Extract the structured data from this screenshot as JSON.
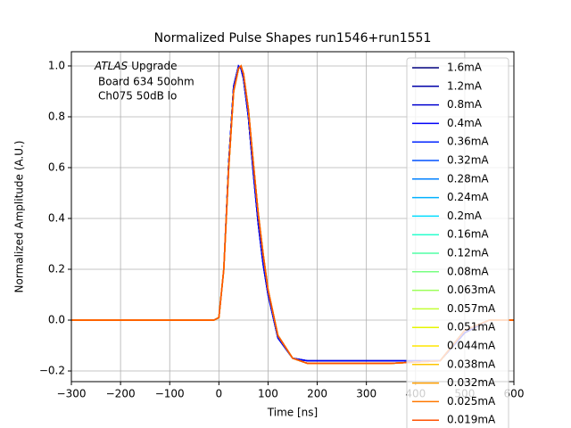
{
  "chart_data": {
    "type": "line",
    "title": "Normalized Pulse Shapes run1546+run1551",
    "x_label": "Time [ns]",
    "y_label": "Normalized Amplitude (A.U.)",
    "annotation": {
      "italic": "ATLAS",
      "text": "Upgrade",
      "lines": [
        "Board 634 50ohm",
        "Ch075 50dB lo"
      ]
    },
    "grid": true,
    "legend": "upper right",
    "xlim": [
      -300,
      600
    ],
    "xticks": [
      {
        "value": -300,
        "label": "−300"
      },
      {
        "value": -200,
        "label": "−200"
      },
      {
        "value": -100,
        "label": "−100"
      },
      0,
      100,
      200,
      300,
      400,
      500,
      600
    ],
    "ylim": [
      -0.242,
      1.056
    ],
    "yticks": [
      {
        "value": -0.2,
        "label": "−0.2"
      },
      {
        "value": 0,
        "label": "0.0"
      },
      0.2,
      0.4,
      0.6,
      0.8,
      {
        "value": 1,
        "label": "1.0"
      }
    ],
    "x": [
      -300,
      -200,
      -100,
      -10,
      0,
      10,
      20,
      30,
      40,
      45,
      50,
      60,
      70,
      80,
      90,
      100,
      120,
      150,
      180,
      250,
      350,
      450,
      500,
      550,
      600
    ],
    "series": [
      {
        "name": "1.6mA",
        "color": "#00007f",
        "values": [
          0,
          0,
          0,
          0,
          0.01,
          0.2,
          0.62,
          0.92,
          1.0,
          0.99,
          0.95,
          0.8,
          0.58,
          0.38,
          0.22,
          0.1,
          -0.07,
          -0.15,
          -0.16,
          -0.16,
          -0.16,
          -0.16,
          -0.05,
          0,
          0
        ]
      },
      {
        "name": "1.2mA",
        "color": "#0000a8",
        "values": [
          0,
          0,
          0,
          0,
          0.01,
          0.2,
          0.62,
          0.92,
          1.0,
          0.99,
          0.95,
          0.8,
          0.58,
          0.38,
          0.22,
          0.1,
          -0.07,
          -0.15,
          -0.16,
          -0.16,
          -0.16,
          -0.16,
          -0.05,
          0,
          0
        ]
      },
      {
        "name": "0.8mA",
        "color": "#0000d0",
        "values": [
          0,
          0,
          0,
          0,
          0.01,
          0.2,
          0.62,
          0.92,
          1.0,
          0.99,
          0.95,
          0.8,
          0.58,
          0.38,
          0.22,
          0.1,
          -0.07,
          -0.15,
          -0.16,
          -0.16,
          -0.16,
          -0.16,
          -0.05,
          0,
          0
        ]
      },
      {
        "name": "0.4mA",
        "color": "#0000f8",
        "values": [
          0,
          0,
          0,
          0,
          0.01,
          0.2,
          0.62,
          0.92,
          1.0,
          0.99,
          0.95,
          0.8,
          0.58,
          0.38,
          0.22,
          0.1,
          -0.07,
          -0.15,
          -0.16,
          -0.16,
          -0.16,
          -0.16,
          -0.05,
          0,
          0
        ]
      },
      {
        "name": "0.36mA",
        "color": "#0024ff",
        "values": [
          0,
          0,
          0,
          0,
          0.01,
          0.2,
          0.6,
          0.9,
          0.99,
          1.0,
          0.97,
          0.83,
          0.62,
          0.42,
          0.26,
          0.12,
          -0.06,
          -0.15,
          -0.17,
          -0.17,
          -0.17,
          -0.16,
          -0.04,
          0,
          0
        ]
      },
      {
        "name": "0.32mA",
        "color": "#0050ff",
        "values": [
          0,
          0,
          0,
          0,
          0.01,
          0.2,
          0.6,
          0.9,
          0.99,
          1.0,
          0.97,
          0.83,
          0.62,
          0.42,
          0.26,
          0.12,
          -0.06,
          -0.15,
          -0.17,
          -0.17,
          -0.17,
          -0.16,
          -0.04,
          0,
          0
        ]
      },
      {
        "name": "0.28mA",
        "color": "#0080ff",
        "values": [
          0,
          0,
          0,
          0,
          0.01,
          0.2,
          0.6,
          0.9,
          0.99,
          1.0,
          0.97,
          0.83,
          0.62,
          0.42,
          0.26,
          0.12,
          -0.06,
          -0.15,
          -0.17,
          -0.17,
          -0.17,
          -0.16,
          -0.04,
          0,
          0
        ]
      },
      {
        "name": "0.24mA",
        "color": "#00b0ff",
        "values": [
          0,
          0,
          0,
          0,
          0.01,
          0.2,
          0.6,
          0.9,
          0.99,
          1.0,
          0.97,
          0.83,
          0.62,
          0.42,
          0.26,
          0.12,
          -0.06,
          -0.15,
          -0.17,
          -0.17,
          -0.17,
          -0.16,
          -0.04,
          0,
          0
        ]
      },
      {
        "name": "0.2mA",
        "color": "#00dcfe",
        "values": [
          0,
          0,
          0,
          0,
          0.01,
          0.2,
          0.6,
          0.9,
          0.99,
          1.0,
          0.97,
          0.83,
          0.62,
          0.42,
          0.26,
          0.12,
          -0.06,
          -0.15,
          -0.17,
          -0.17,
          -0.17,
          -0.16,
          -0.04,
          0,
          0
        ]
      },
      {
        "name": "0.16mA",
        "color": "#29ffce",
        "values": [
          0,
          0,
          0,
          0,
          0.01,
          0.2,
          0.6,
          0.9,
          0.99,
          1.0,
          0.97,
          0.83,
          0.62,
          0.42,
          0.26,
          0.12,
          -0.06,
          -0.15,
          -0.17,
          -0.17,
          -0.17,
          -0.16,
          -0.04,
          0,
          0
        ]
      },
      {
        "name": "0.12mA",
        "color": "#50ffa6",
        "values": [
          0,
          0,
          0,
          0,
          0.01,
          0.2,
          0.6,
          0.9,
          0.99,
          1.0,
          0.97,
          0.83,
          0.62,
          0.42,
          0.26,
          0.12,
          -0.06,
          -0.15,
          -0.17,
          -0.17,
          -0.17,
          -0.16,
          -0.04,
          0,
          0
        ]
      },
      {
        "name": "0.08mA",
        "color": "#77ff80",
        "values": [
          0,
          0,
          0,
          0,
          0.01,
          0.2,
          0.6,
          0.9,
          0.99,
          1.0,
          0.97,
          0.83,
          0.62,
          0.42,
          0.26,
          0.12,
          -0.06,
          -0.15,
          -0.17,
          -0.17,
          -0.17,
          -0.16,
          -0.04,
          0,
          0
        ]
      },
      {
        "name": "0.063mA",
        "color": "#9cff5a",
        "values": [
          0,
          0,
          0,
          0,
          0.01,
          0.2,
          0.6,
          0.9,
          0.99,
          1.0,
          0.97,
          0.83,
          0.62,
          0.42,
          0.26,
          0.12,
          -0.06,
          -0.15,
          -0.17,
          -0.17,
          -0.17,
          -0.16,
          -0.04,
          0,
          0
        ]
      },
      {
        "name": "0.057mA",
        "color": "#c3ff34",
        "values": [
          0,
          0,
          0,
          0,
          0.01,
          0.2,
          0.6,
          0.9,
          0.99,
          1.0,
          0.97,
          0.83,
          0.62,
          0.42,
          0.26,
          0.12,
          -0.06,
          -0.15,
          -0.17,
          -0.17,
          -0.17,
          -0.16,
          -0.04,
          0,
          0
        ]
      },
      {
        "name": "0.051mA",
        "color": "#e6f500",
        "values": [
          0,
          0,
          0,
          0,
          0.01,
          0.2,
          0.6,
          0.9,
          0.99,
          1.0,
          0.97,
          0.83,
          0.62,
          0.42,
          0.26,
          0.12,
          -0.06,
          -0.15,
          -0.17,
          -0.17,
          -0.17,
          -0.16,
          -0.04,
          0,
          0
        ]
      },
      {
        "name": "0.044mA",
        "color": "#ffe600",
        "values": [
          0,
          0,
          0,
          0,
          0.01,
          0.2,
          0.6,
          0.9,
          0.99,
          1.0,
          0.97,
          0.83,
          0.62,
          0.42,
          0.26,
          0.12,
          -0.06,
          -0.15,
          -0.17,
          -0.17,
          -0.17,
          -0.16,
          -0.04,
          0,
          0
        ]
      },
      {
        "name": "0.038mA",
        "color": "#ffc400",
        "values": [
          0,
          0,
          0,
          0,
          0.01,
          0.2,
          0.6,
          0.9,
          0.99,
          1.0,
          0.97,
          0.83,
          0.62,
          0.42,
          0.26,
          0.12,
          -0.06,
          -0.15,
          -0.17,
          -0.17,
          -0.17,
          -0.16,
          -0.04,
          0,
          0
        ]
      },
      {
        "name": "0.032mA",
        "color": "#ff9e00",
        "values": [
          0,
          0,
          0,
          0,
          0.01,
          0.2,
          0.6,
          0.9,
          0.99,
          1.0,
          0.97,
          0.83,
          0.62,
          0.42,
          0.26,
          0.12,
          -0.06,
          -0.15,
          -0.17,
          -0.17,
          -0.17,
          -0.16,
          -0.04,
          0,
          0
        ]
      },
      {
        "name": "0.025mA",
        "color": "#ff7800",
        "values": [
          0,
          0,
          0,
          0,
          0.01,
          0.2,
          0.6,
          0.9,
          0.99,
          1.0,
          0.97,
          0.83,
          0.62,
          0.42,
          0.26,
          0.12,
          -0.06,
          -0.15,
          -0.17,
          -0.17,
          -0.17,
          -0.16,
          -0.04,
          0,
          0
        ]
      },
      {
        "name": "0.019mA",
        "color": "#ff5200",
        "values": [
          0,
          0,
          0,
          0,
          0.01,
          0.2,
          0.6,
          0.9,
          0.99,
          1.0,
          0.97,
          0.83,
          0.62,
          0.42,
          0.26,
          0.12,
          -0.06,
          -0.15,
          -0.17,
          -0.17,
          -0.17,
          -0.16,
          -0.04,
          0,
          0
        ]
      }
    ]
  }
}
